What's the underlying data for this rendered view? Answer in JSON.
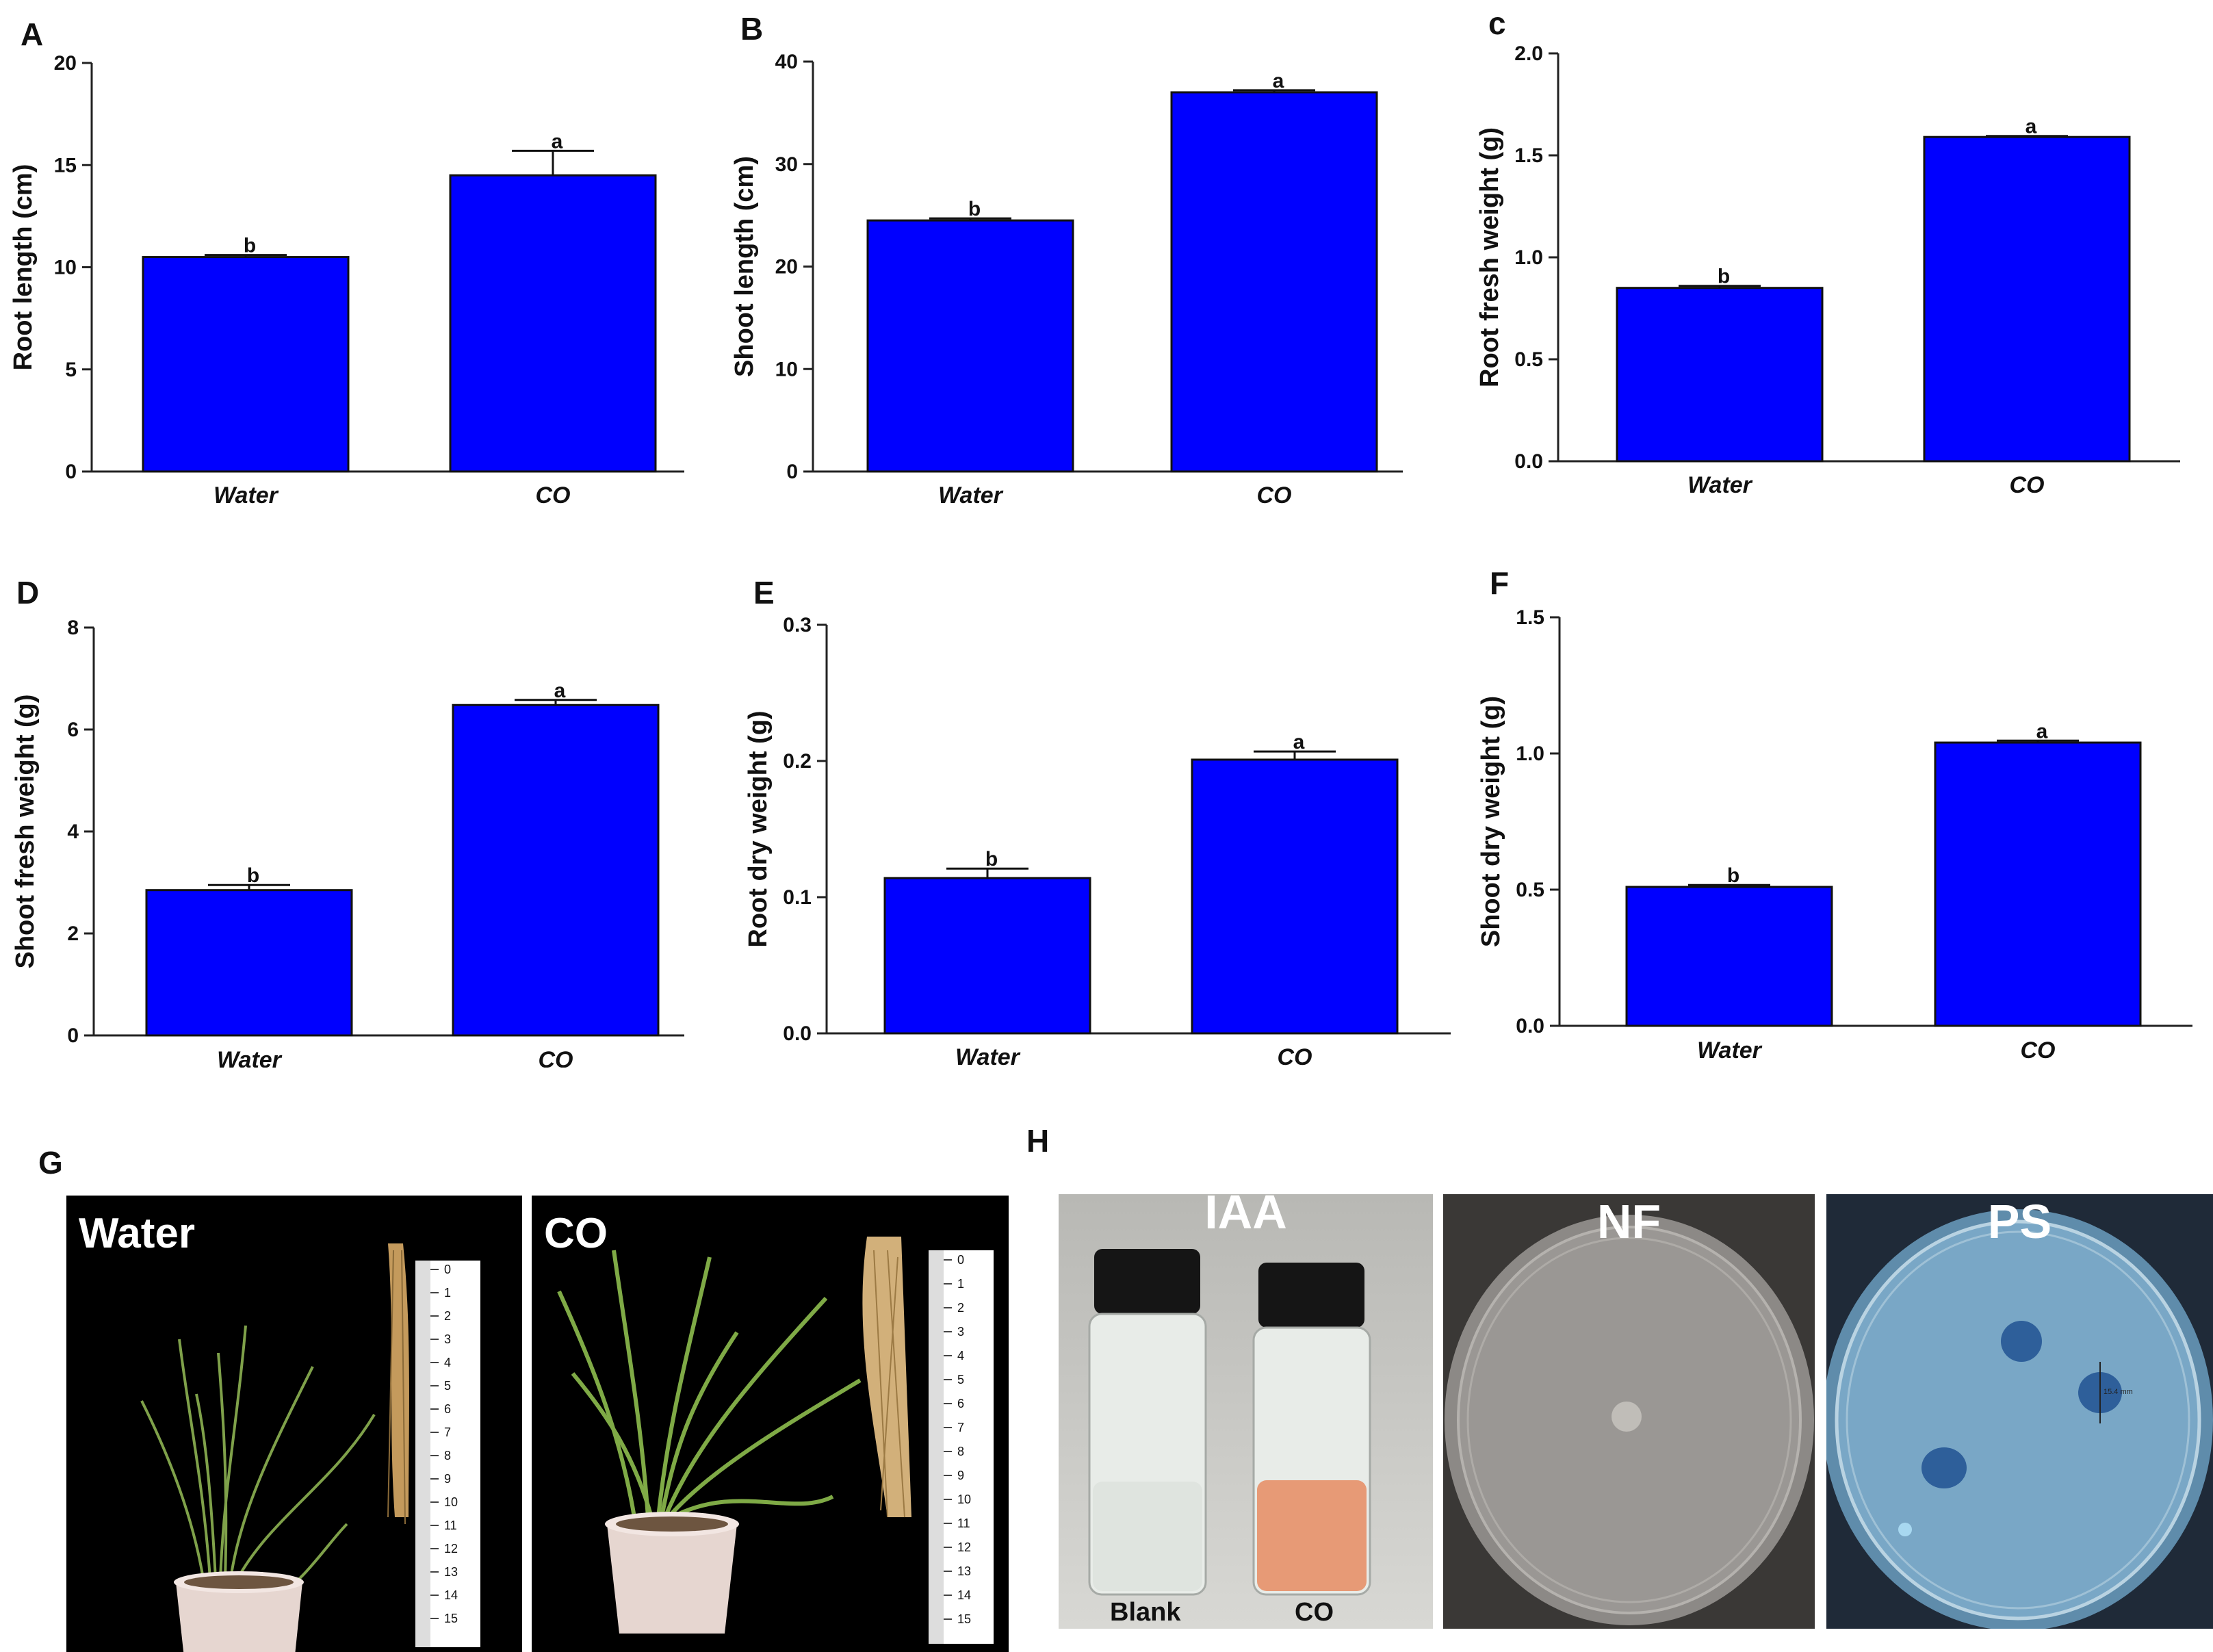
{
  "chart_data": [
    {
      "panel": "A",
      "type": "bar",
      "categories": [
        "Water",
        "CO"
      ],
      "values": [
        10.5,
        14.5
      ],
      "errors": [
        0.1,
        1.2
      ],
      "significance": [
        "b",
        "a"
      ],
      "ylabel": "Root length (cm)",
      "ylim": [
        0,
        20
      ],
      "yticks": [
        "0",
        "5",
        "10",
        "15",
        "20"
      ],
      "bar_color": "#0000ff"
    },
    {
      "panel": "B",
      "type": "bar",
      "categories": [
        "Water",
        "CO"
      ],
      "values": [
        24.5,
        37.0
      ],
      "errors": [
        0.2,
        0.2
      ],
      "significance": [
        "b",
        "a"
      ],
      "ylabel": "Shoot length (cm)",
      "ylim": [
        0,
        40
      ],
      "yticks": [
        "0",
        "10",
        "20",
        "30",
        "40"
      ],
      "bar_color": "#0000ff"
    },
    {
      "panel": "c",
      "type": "bar",
      "categories": [
        "Water",
        "CO"
      ],
      "values": [
        0.85,
        1.59
      ],
      "errors": [
        0.01,
        0.005
      ],
      "significance": [
        "b",
        "a"
      ],
      "ylabel": "Root fresh weight (g)",
      "ylim": [
        0,
        2.0
      ],
      "yticks": [
        "0.0",
        "0.5",
        "1.0",
        "1.5",
        "2.0"
      ],
      "bar_color": "#0000ff"
    },
    {
      "panel": "D",
      "type": "bar",
      "categories": [
        "Water",
        "CO"
      ],
      "values": [
        2.85,
        6.48
      ],
      "errors": [
        0.1,
        0.1
      ],
      "significance": [
        "b",
        "a"
      ],
      "ylabel": "Shoot fresh weight (g)",
      "ylim": [
        0,
        8
      ],
      "yticks": [
        "0",
        "2",
        "4",
        "6",
        "8"
      ],
      "bar_color": "#0000ff"
    },
    {
      "panel": "E",
      "type": "bar",
      "categories": [
        "Water",
        "CO"
      ],
      "values": [
        0.114,
        0.201
      ],
      "errors": [
        0.007,
        0.006
      ],
      "significance": [
        "b",
        "a"
      ],
      "ylabel": "Root dry weight (g)",
      "ylim": [
        0,
        0.3
      ],
      "yticks": [
        "0.0",
        "0.1",
        "0.2",
        "0.3"
      ],
      "bar_color": "#0000ff"
    },
    {
      "panel": "F",
      "type": "bar",
      "categories": [
        "Water",
        "CO"
      ],
      "values": [
        0.51,
        1.04
      ],
      "errors": [
        0.007,
        0.007
      ],
      "significance": [
        "b",
        "a"
      ],
      "ylabel": "Shoot dry weight (g)",
      "ylim": [
        0,
        1.5
      ],
      "yticks": [
        "0.0",
        "0.5",
        "1.0",
        "1.5"
      ],
      "bar_color": "#0000ff"
    }
  ],
  "panel_g": {
    "label": "G",
    "photos": [
      {
        "caption": "Water"
      },
      {
        "caption": "CO"
      }
    ],
    "ruler_ticks": [
      "0",
      "1",
      "2",
      "3",
      "4",
      "5",
      "6",
      "7",
      "8",
      "9",
      "10",
      "11",
      "12",
      "13",
      "14",
      "15"
    ]
  },
  "panel_h": {
    "label": "H",
    "photos": [
      {
        "caption": "IAA",
        "vial_labels": [
          "Blank",
          "CO"
        ]
      },
      {
        "caption": "NF"
      },
      {
        "caption": "PS",
        "measurement": "15.4 mm"
      }
    ]
  }
}
